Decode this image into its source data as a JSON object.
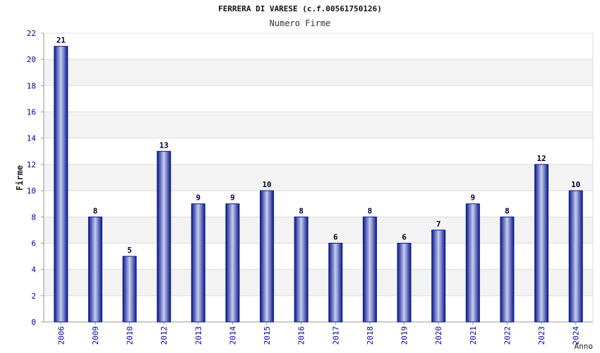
{
  "chart_data": {
    "type": "bar",
    "title": "FERRERA DI VARESE (c.f.00561750126)",
    "subtitle": "Numero Firme",
    "xlabel": "Anno",
    "ylabel": "Firme",
    "categories": [
      "2006",
      "2009",
      "2010",
      "2012",
      "2013",
      "2014",
      "2015",
      "2016",
      "2017",
      "2018",
      "2019",
      "2020",
      "2021",
      "2022",
      "2023",
      "2024"
    ],
    "values": [
      21,
      8,
      5,
      13,
      9,
      9,
      10,
      8,
      6,
      8,
      6,
      7,
      9,
      8,
      12,
      10
    ],
    "ylim": [
      0,
      22
    ],
    "yticks": [
      0,
      2,
      4,
      6,
      8,
      10,
      12,
      14,
      16,
      18,
      20,
      22
    ],
    "grid": true,
    "grid_style": "alternating horizontal bands",
    "data_labels": true,
    "colors": {
      "bar_edge": "#0a1a8c",
      "bar_center": "#c8ccee",
      "band": "#f3f3f3",
      "grid": "#dddddd",
      "axis": "#999999",
      "tick_label": "#0000aa",
      "value_label": "#000033"
    }
  }
}
